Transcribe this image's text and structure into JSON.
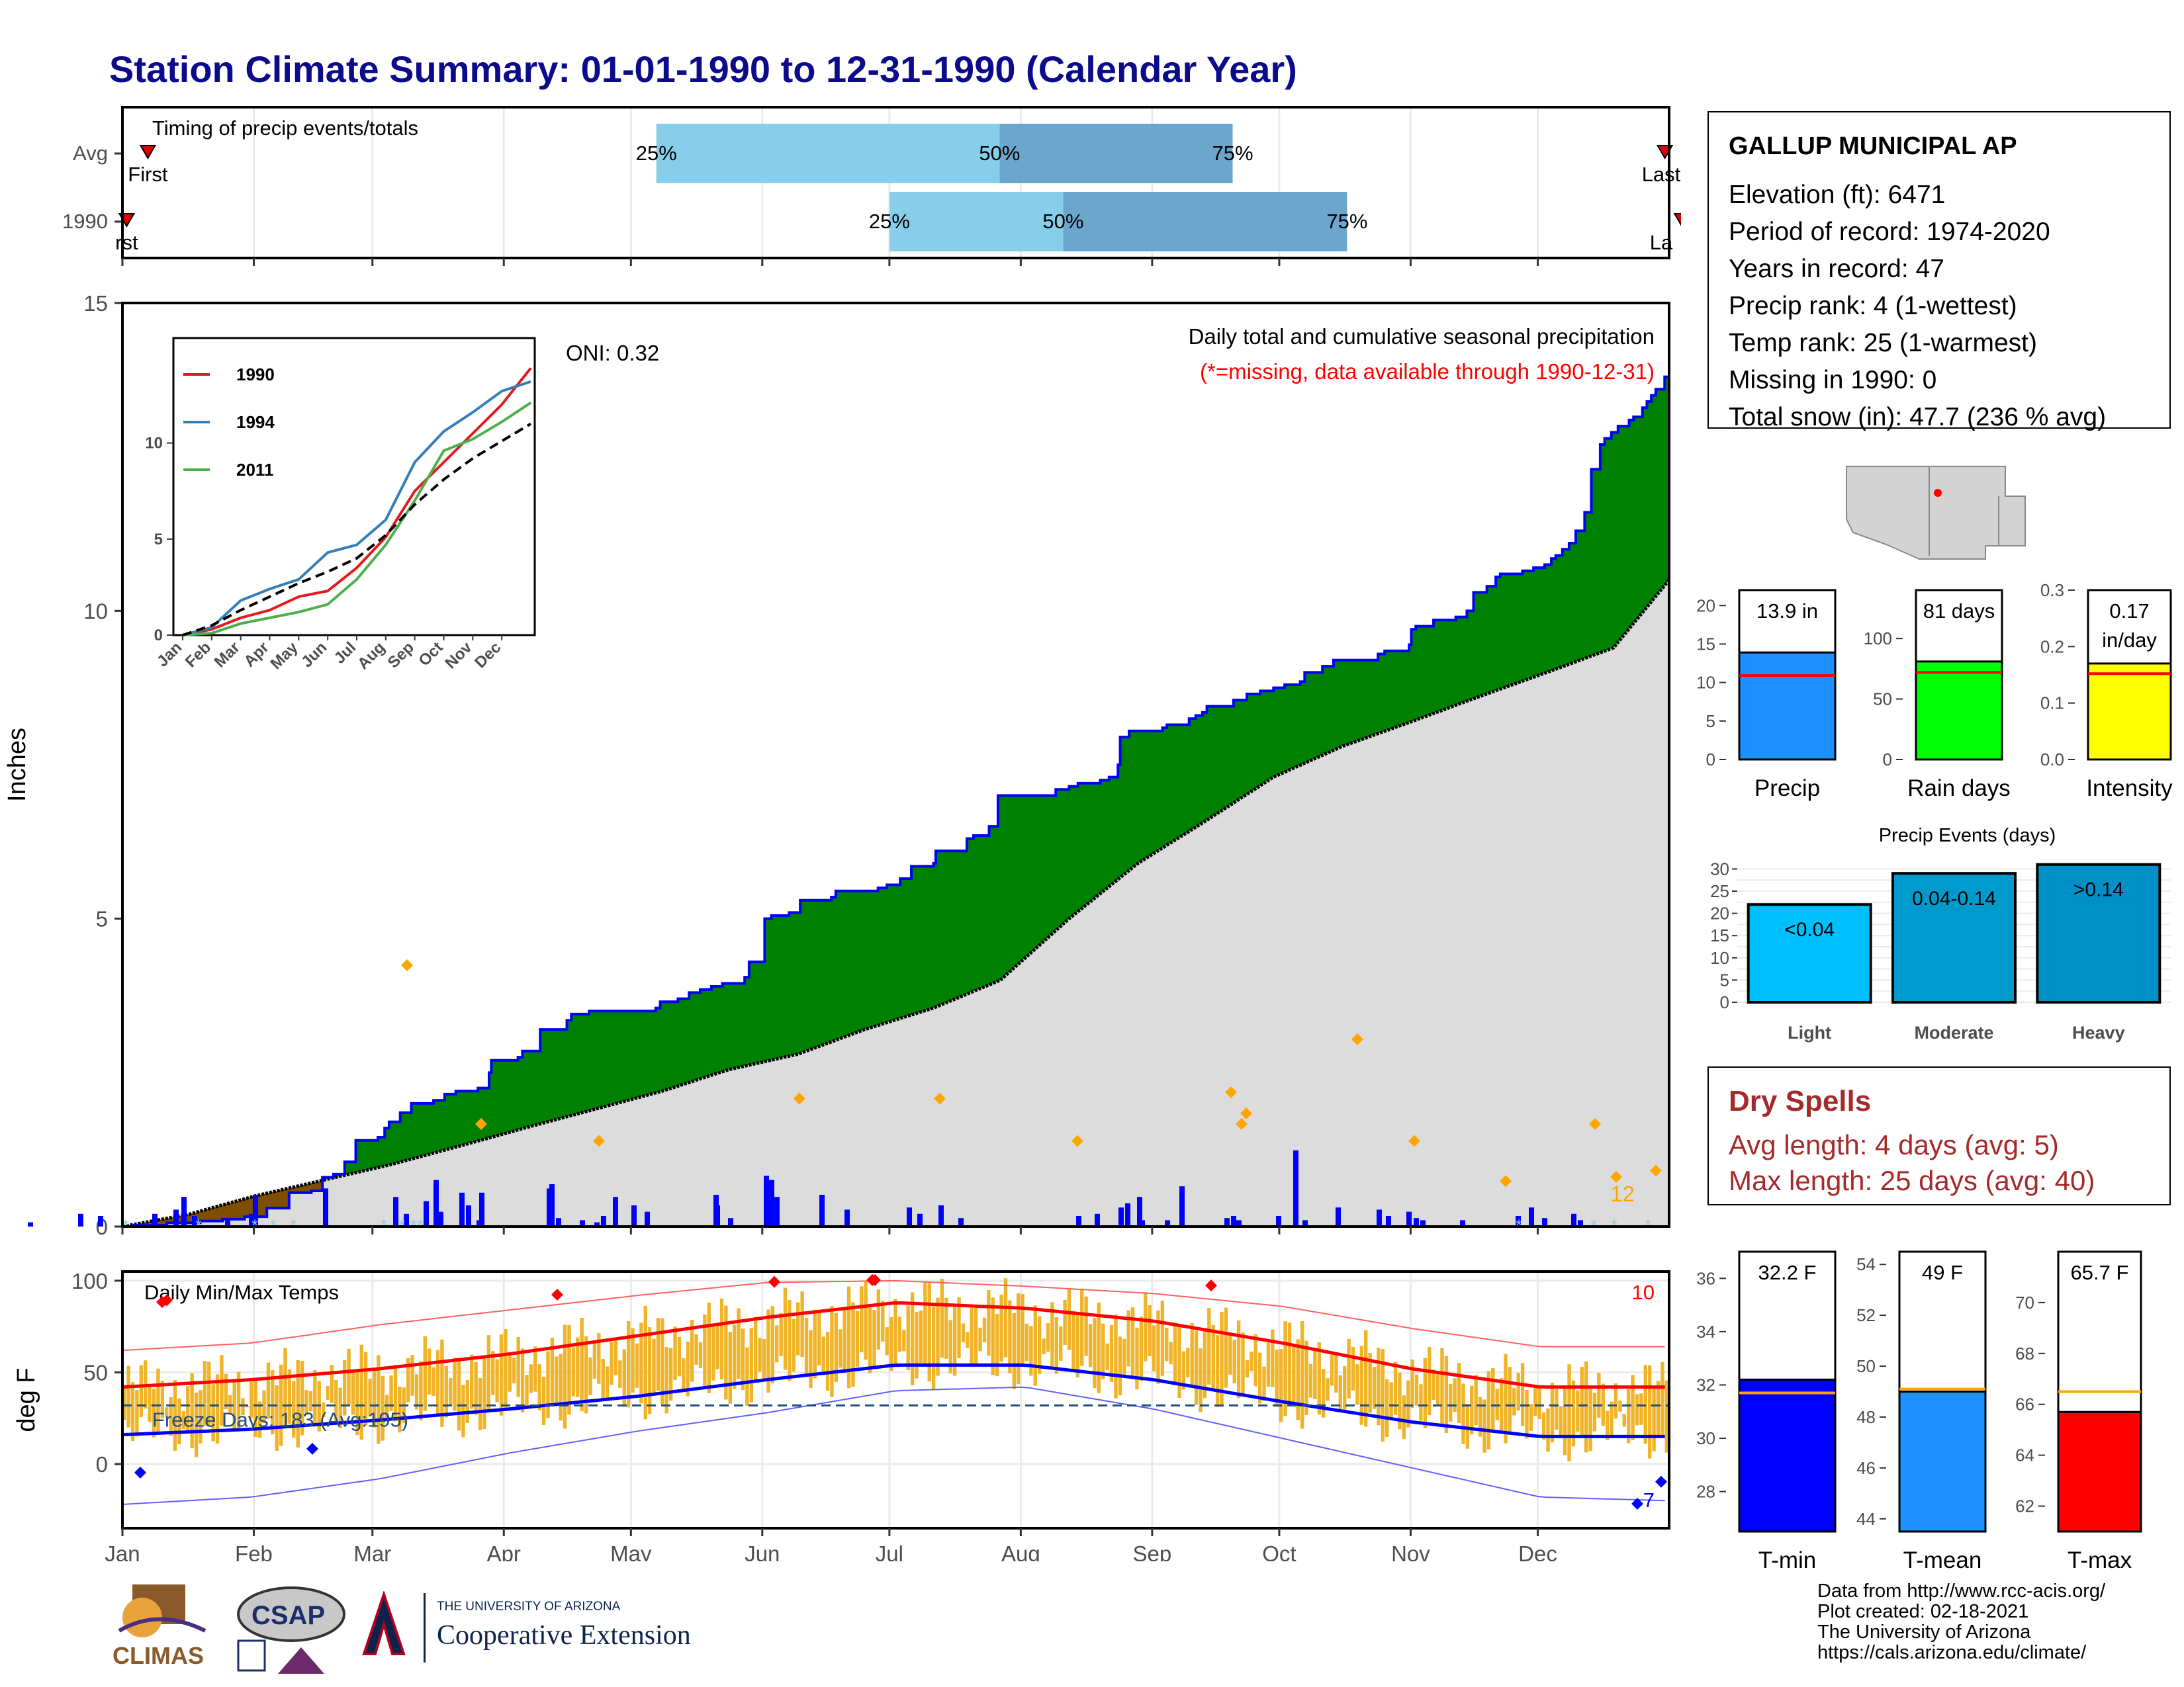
{
  "title": "Station Climate Summary: 01-01-1990 to 12-31-1990 (Calendar Year)",
  "station": {
    "name": "GALLUP MUNICIPAL AP",
    "lines": [
      "Elevation (ft): 6471",
      "Period of record: 1974-2020",
      "Years in record: 47",
      "Precip rank: 4 (1-wettest)",
      "Temp rank: 25 (1-warmest)",
      "Missing in 1990: 0",
      "Total snow (in): 47.7 (236 % avg)"
    ]
  },
  "dry_spells": {
    "title": "Dry Spells",
    "avg_line": "Avg length: 4 days (avg: 5)",
    "max_line": "Max length: 25 days (avg: 40)"
  },
  "credits": {
    "lines": [
      "Data from http://www.rcc-acis.org/",
      "Plot created: 02-18-2021",
      "The University of Arizona",
      "https://cals.arizona.edu/climate/"
    ]
  },
  "logos": {
    "climas": "CLIMAS",
    "csap": "CSAP",
    "ua_small": "THE UNIVERSITY OF ARIZONA",
    "ua_big": "Cooperative Extension"
  },
  "colors": {
    "title": "#0b0b8c",
    "q_light": "#87ceeb",
    "q_dark": "#6ca6cd",
    "green": "#008000",
    "brown": "#7f4f00",
    "blue_line": "#0000ff",
    "normal_fill": "#dcdcdc",
    "temp_bar": "#f0b429",
    "red": "#ff0000",
    "dry_red": "#a52a2a"
  },
  "chart_data": [
    {
      "type": "bar",
      "id": "timing",
      "title": "Timing of precip events/totals",
      "categories": [
        "Avg",
        "1990"
      ],
      "rows": [
        {
          "label": "Avg",
          "first_day": 6,
          "last_day": 364,
          "q25": 126,
          "q50": 207,
          "q75": 262,
          "first_label": "First",
          "last_label": "Last",
          "q25_label": "25%",
          "q50_label": "50%",
          "q75_label": "75%"
        },
        {
          "label": "1990",
          "first_day": 1,
          "last_day": 368,
          "q25": 181,
          "q50": 222,
          "q75": 289,
          "first_label": "rst",
          "last_label": "La",
          "q25_label": "25%",
          "q50_label": "50%",
          "q75_label": "75%"
        }
      ]
    },
    {
      "type": "area",
      "id": "main_precip",
      "title": "Daily total and cumulative seasonal precipitation",
      "subtitle": "(*=missing, data available through 1990-12-31)",
      "ylabel": "Inches",
      "ylim": [
        0,
        15
      ],
      "yticks": [
        0,
        5,
        10,
        15
      ],
      "oni_label": "ONI: 0.32",
      "snow_count_label": "12",
      "normal_total": 10.5,
      "cumulative_1990": [
        [
          0,
          0
        ],
        [
          5,
          0.02
        ],
        [
          20,
          0.06
        ],
        [
          35,
          0.09
        ],
        [
          45,
          0.12
        ],
        [
          55,
          0.16
        ],
        [
          65,
          0.3
        ],
        [
          75,
          0.55
        ],
        [
          85,
          0.58
        ],
        [
          90,
          0.8
        ],
        [
          95,
          0.85
        ],
        [
          100,
          1.05
        ],
        [
          105,
          1.4
        ],
        [
          115,
          1.45
        ],
        [
          118,
          1.6
        ],
        [
          120,
          1.7
        ],
        [
          125,
          1.85
        ],
        [
          130,
          2.0
        ],
        [
          140,
          2.05
        ],
        [
          145,
          2.15
        ],
        [
          150,
          2.2
        ],
        [
          160,
          2.25
        ],
        [
          165,
          2.5
        ],
        [
          166,
          2.7
        ],
        [
          178,
          2.75
        ],
        [
          180,
          2.85
        ],
        [
          188,
          3.2
        ],
        [
          200,
          3.35
        ],
        [
          202,
          3.45
        ],
        [
          210,
          3.5
        ],
        [
          240,
          3.55
        ],
        [
          242,
          3.65
        ],
        [
          250,
          3.7
        ],
        [
          255,
          3.8
        ],
        [
          260,
          3.85
        ],
        [
          265,
          3.9
        ],
        [
          270,
          3.95
        ],
        [
          280,
          4.05
        ],
        [
          282,
          4.3
        ],
        [
          289,
          5.0
        ],
        [
          292,
          5.05
        ],
        [
          300,
          5.1
        ],
        [
          305,
          5.3
        ],
        [
          319,
          5.35
        ],
        [
          321,
          5.45
        ],
        [
          340,
          5.5
        ],
        [
          344,
          5.55
        ],
        [
          350,
          5.65
        ],
        [
          355,
          5.85
        ],
        [
          365,
          5.9
        ],
        [
          366,
          6.1
        ],
        [
          380,
          6.3
        ],
        [
          383,
          6.35
        ],
        [
          390,
          6.5
        ],
        [
          394,
          7.0
        ],
        [
          420,
          7.1
        ],
        [
          426,
          7.15
        ],
        [
          430,
          7.2
        ],
        [
          440,
          7.25
        ],
        [
          444,
          7.3
        ],
        [
          448,
          7.5
        ],
        [
          449,
          7.95
        ],
        [
          453,
          8.05
        ],
        [
          468,
          8.1
        ],
        [
          470,
          8.15
        ],
        [
          480,
          8.25
        ],
        [
          483,
          8.3
        ],
        [
          486,
          8.35
        ],
        [
          488,
          8.45
        ],
        [
          500,
          8.55
        ],
        [
          506,
          8.65
        ],
        [
          512,
          8.7
        ],
        [
          518,
          8.75
        ],
        [
          523,
          8.8
        ],
        [
          530,
          8.85
        ],
        [
          532,
          9.0
        ],
        [
          540,
          9.1
        ],
        [
          545,
          9.2
        ],
        [
          565,
          9.3
        ],
        [
          568,
          9.35
        ],
        [
          579,
          9.45
        ],
        [
          580,
          9.7
        ],
        [
          582,
          9.75
        ],
        [
          590,
          9.85
        ],
        [
          600,
          9.9
        ],
        [
          605,
          10.0
        ],
        [
          608,
          10.3
        ],
        [
          614,
          10.4
        ],
        [
          618,
          10.55
        ],
        [
          620,
          10.6
        ],
        [
          630,
          10.65
        ],
        [
          635,
          10.7
        ],
        [
          640,
          10.75
        ],
        [
          643,
          10.85
        ],
        [
          645,
          10.9
        ],
        [
          648,
          11.0
        ],
        [
          651,
          11.1
        ],
        [
          654,
          11.3
        ],
        [
          658,
          11.6
        ],
        [
          661,
          12.3
        ],
        [
          665,
          12.7
        ],
        [
          667,
          12.8
        ],
        [
          670,
          12.9
        ],
        [
          673,
          13.0
        ],
        [
          678,
          13.1
        ],
        [
          680,
          13.15
        ],
        [
          684,
          13.3
        ],
        [
          686,
          13.4
        ],
        [
          688,
          13.5
        ],
        [
          690,
          13.6
        ],
        [
          694,
          13.8
        ],
        [
          696,
          13.85
        ]
      ],
      "normal_cumulative": [
        [
          0,
          0
        ],
        [
          30,
          0.2
        ],
        [
          60,
          0.5
        ],
        [
          90,
          0.75
        ],
        [
          120,
          1.0
        ],
        [
          151,
          1.3
        ],
        [
          181,
          1.6
        ],
        [
          212,
          1.9
        ],
        [
          243,
          2.2
        ],
        [
          273,
          2.55
        ],
        [
          304,
          2.8
        ],
        [
          334,
          3.2
        ],
        [
          365,
          3.55
        ],
        [
          395,
          4.0
        ],
        [
          426,
          5.0
        ],
        [
          457,
          5.9
        ],
        [
          488,
          6.6
        ],
        [
          518,
          7.3
        ],
        [
          549,
          7.8
        ],
        [
          580,
          8.2
        ],
        [
          610,
          8.6
        ],
        [
          641,
          9.0
        ],
        [
          671,
          9.4
        ],
        [
          696,
          10.5
        ]
      ],
      "x_note": "x values are day-of-year scaled to month boundaries (Jan=0, Dec end=365)"
    },
    {
      "type": "line",
      "id": "inset_years",
      "series": [
        {
          "name": "1990",
          "color": "#e41a1c"
        },
        {
          "name": "1994",
          "color": "#377eb8"
        },
        {
          "name": "2011",
          "color": "#4daf4a"
        }
      ],
      "yticks": [
        0,
        5,
        10
      ],
      "ylim": [
        0,
        15
      ],
      "xtick_labels": [
        "Jan",
        "Feb",
        "Mar",
        "Apr",
        "May",
        "Jun",
        "Jul",
        "Aug",
        "Sep",
        "Oct",
        "Nov",
        "Dec"
      ],
      "values_1990": [
        0,
        0.3,
        0.9,
        1.3,
        2.0,
        2.3,
        3.5,
        5.1,
        7.5,
        9.0,
        10.5,
        12.0,
        13.9
      ],
      "values_1994": [
        0,
        0.4,
        1.8,
        2.4,
        2.9,
        4.3,
        4.7,
        6.0,
        9.0,
        10.6,
        11.6,
        12.7,
        13.2
      ],
      "values_2011": [
        0,
        0.1,
        0.6,
        0.9,
        1.2,
        1.6,
        2.9,
        4.7,
        7.0,
        9.6,
        10.2,
        11.1,
        12.1
      ],
      "values_normal": [
        0,
        0.5,
        1.3,
        2.0,
        2.7,
        3.3,
        4.0,
        5.2,
        6.8,
        8.1,
        9.2,
        10.1,
        11.0
      ]
    },
    {
      "type": "bar",
      "id": "bar_precip",
      "xlabel": "Precip",
      "value": 13.9,
      "avg": 10.9,
      "ylim": [
        0,
        22
      ],
      "yticks": [
        0,
        5,
        10,
        15,
        20
      ],
      "label": "13.9 in",
      "color": "#1e90ff"
    },
    {
      "type": "bar",
      "id": "bar_raindays",
      "xlabel": "Rain days",
      "value": 81,
      "avg": 72,
      "ylim": [
        0,
        140
      ],
      "yticks": [
        0,
        50,
        100
      ],
      "label": "81 days",
      "color": "#00ff00"
    },
    {
      "type": "bar",
      "id": "bar_intensity",
      "xlabel": "Intensity",
      "value": 0.17,
      "avg": 0.152,
      "ylim": [
        0,
        0.3
      ],
      "yticks": [
        0.0,
        0.1,
        0.2,
        0.3
      ],
      "label_lines": [
        "0.17",
        "in/day"
      ],
      "color": "#ffff00"
    },
    {
      "type": "bar",
      "id": "precip_events",
      "title": "Precip Events (days)",
      "categories": [
        "Light",
        "Moderate",
        "Heavy"
      ],
      "values": [
        22,
        29,
        31
      ],
      "bar_labels": [
        "<0.04",
        "0.04-0.14",
        ">0.14"
      ],
      "colors": [
        "#00bfff",
        "#009acd",
        "#0090c8"
      ],
      "ylim": [
        0,
        32
      ],
      "yticks": [
        0,
        5,
        10,
        15,
        20,
        25,
        30
      ]
    },
    {
      "type": "line",
      "id": "temps",
      "title": "Daily Min/Max Temps",
      "ylabel": "deg F",
      "ylim": [
        -35,
        105
      ],
      "yticks": [
        0,
        50,
        100
      ],
      "freeze_label": "Freeze Days: 183 (Avg:195)",
      "freeze_line": 32,
      "max_record_count": "10",
      "min_record_count": "7",
      "xtick_labels": [
        "Jan",
        "Feb",
        "Mar",
        "Apr",
        "May",
        "Jun",
        "Jul",
        "Aug",
        "Sep",
        "Oct",
        "Nov",
        "Dec"
      ],
      "avg_max": [
        42,
        46,
        52,
        60,
        70,
        80,
        88,
        85,
        78,
        66,
        52,
        42,
        42
      ],
      "avg_min": [
        16,
        19,
        24,
        30,
        37,
        46,
        54,
        54,
        46,
        34,
        23,
        15,
        15
      ],
      "rec_max": [
        62,
        66,
        76,
        84,
        92,
        99,
        100,
        97,
        93,
        86,
        74,
        64,
        64
      ],
      "rec_min": [
        -22,
        -18,
        -8,
        6,
        18,
        28,
        40,
        42,
        30,
        14,
        -2,
        -18,
        -20
      ]
    },
    {
      "type": "bar",
      "id": "bar_tmin",
      "xlabel": "T-min",
      "value": 32.2,
      "avg": 31.7,
      "ylim": [
        26.5,
        37
      ],
      "yticks": [
        28,
        30,
        32,
        34,
        36
      ],
      "label": "32.2 F",
      "color": "#0000ff"
    },
    {
      "type": "bar",
      "id": "bar_tmean",
      "xlabel": "T-mean",
      "value": 49,
      "avg": 49.1,
      "ylim": [
        43.5,
        54.5
      ],
      "yticks": [
        44,
        46,
        48,
        50,
        52,
        54
      ],
      "label": "49 F",
      "color": "#1e90ff"
    },
    {
      "type": "bar",
      "id": "bar_tmax",
      "xlabel": "T-max",
      "value": 65.7,
      "avg": 66.5,
      "ylim": [
        61,
        72
      ],
      "yticks": [
        62,
        64,
        66,
        68,
        70
      ],
      "label": "65.7 F",
      "color": "#ff0000"
    }
  ]
}
